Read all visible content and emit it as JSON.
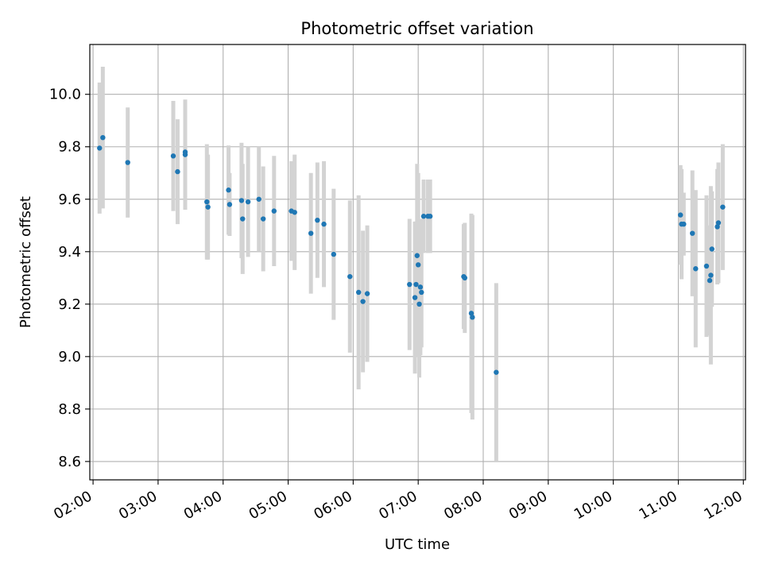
{
  "chart_data": {
    "type": "scatter",
    "title": "Photometric offset variation",
    "xlabel": "UTC time",
    "ylabel": "Photometric offset",
    "x_ticks": [
      "02:00",
      "03:00",
      "04:00",
      "05:00",
      "06:00",
      "07:00",
      "08:00",
      "09:00",
      "10:00",
      "11:00",
      "12:00"
    ],
    "y_ticks": [
      "8.6",
      "8.8",
      "9.0",
      "9.2",
      "9.4",
      "9.6",
      "9.8",
      "10.0"
    ],
    "xlim": [
      "01:57",
      "12:02"
    ],
    "ylim": [
      8.53,
      10.19
    ],
    "grid": true,
    "colors": {
      "point": "#1f77b4",
      "errorbar": "#d3d3d3",
      "grid": "#b0b0b0"
    },
    "series": [
      {
        "x": [
          "02:06",
          "02:09",
          "02:32",
          "03:14",
          "03:18",
          "03:25",
          "03:25",
          "03:45",
          "03:46",
          "04:05",
          "04:06",
          "04:17",
          "04:18",
          "04:23",
          "04:33",
          "04:37",
          "04:47",
          "05:03",
          "05:06",
          "05:21",
          "05:27",
          "05:33",
          "05:42",
          "05:57",
          "06:05",
          "06:09",
          "06:13",
          "06:52",
          "06:57",
          "06:58",
          "06:59",
          "07:00",
          "07:01",
          "07:02",
          "07:03",
          "07:05",
          "07:09",
          "07:11",
          "07:42",
          "07:43",
          "07:49",
          "07:50",
          "08:12",
          "11:02",
          "11:03",
          "11:05",
          "11:13",
          "11:16",
          "11:26",
          "11:29",
          "11:30",
          "11:31",
          "11:36",
          "11:37",
          "11:41"
        ],
        "y": [
          9.795,
          9.835,
          9.74,
          9.765,
          9.705,
          9.78,
          9.77,
          9.59,
          9.57,
          9.635,
          9.58,
          9.595,
          9.525,
          9.59,
          9.6,
          9.525,
          9.555,
          9.555,
          9.55,
          9.47,
          9.52,
          9.505,
          9.39,
          9.305,
          9.245,
          9.21,
          9.24,
          9.275,
          9.225,
          9.275,
          9.385,
          9.35,
          9.2,
          9.265,
          9.245,
          9.535,
          9.535,
          9.535,
          9.305,
          9.3,
          9.165,
          9.15,
          8.94,
          9.54,
          9.505,
          9.505,
          9.47,
          9.335,
          9.345,
          9.29,
          9.31,
          9.41,
          9.495,
          9.51,
          9.57
        ],
        "yerr": [
          0.25,
          0.27,
          0.21,
          0.21,
          0.2,
          0.2,
          0.21,
          0.22,
          0.2,
          0.17,
          0.12,
          0.22,
          0.21,
          0.21,
          0.2,
          0.2,
          0.21,
          0.19,
          0.22,
          0.23,
          0.22,
          0.24,
          0.25,
          0.29,
          0.37,
          0.27,
          0.26,
          0.25,
          0.29,
          0.24,
          0.35,
          0.35,
          0.28,
          0.26,
          0.21,
          0.14,
          0.14,
          0.14,
          0.2,
          0.21,
          0.38,
          0.39,
          0.34,
          0.19,
          0.21,
          0.12,
          0.24,
          0.3,
          0.27,
          0.21,
          0.34,
          0.22,
          0.22,
          0.23,
          0.24
        ]
      }
    ]
  }
}
